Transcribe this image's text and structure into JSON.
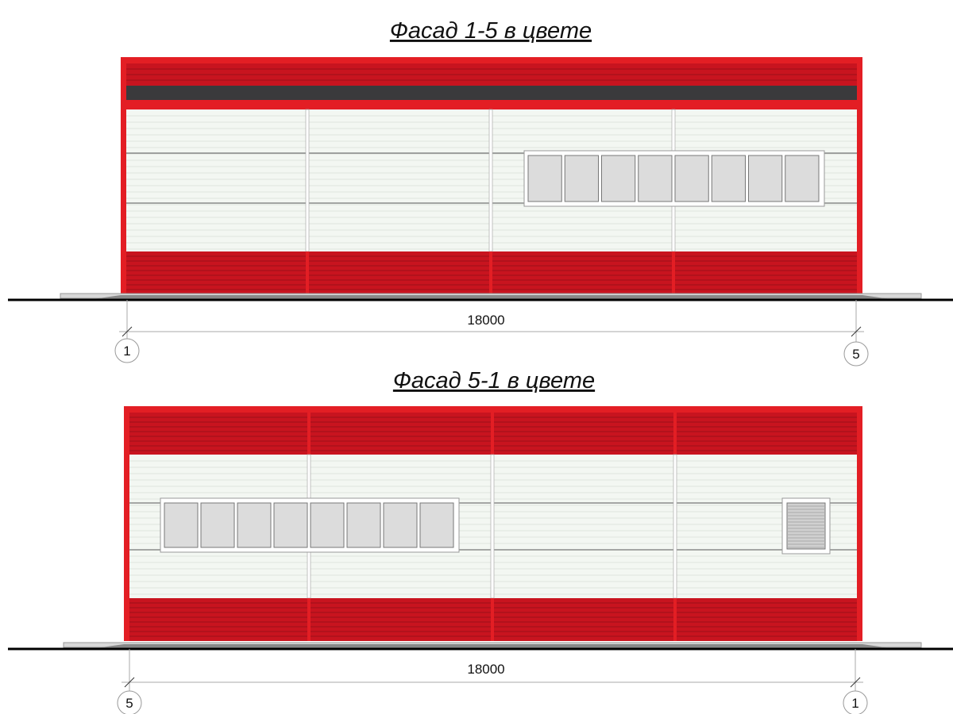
{
  "facades": [
    {
      "title": "Фасад 1-5 в цвете",
      "dimension": "18000",
      "axis_left": "1",
      "axis_right": "5",
      "window_panes": 8,
      "has_vent": false
    },
    {
      "title": "Фасад 5-1 в цвете",
      "dimension": "18000",
      "axis_left": "5",
      "axis_right": "1",
      "window_panes": 8,
      "has_vent": true
    }
  ],
  "colors": {
    "red": "#e31e24",
    "dark_red": "#c8141f",
    "dark_band": "#3a3a3c",
    "wall": "#f3f7f2",
    "pane": "#dcdcdc"
  }
}
